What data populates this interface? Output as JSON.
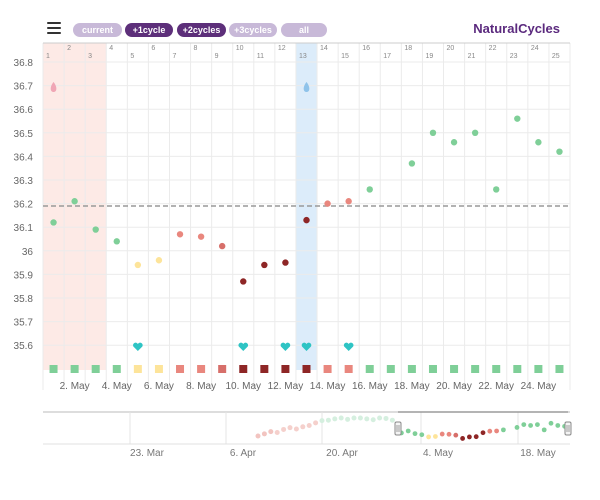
{
  "toolbar": {
    "menu_icon": "hamburger-menu-icon",
    "cycle_buttons": [
      {
        "label": "current",
        "style": "light"
      },
      {
        "label": "+1cycle",
        "style": "dark"
      },
      {
        "label": "+2cycles",
        "style": "dark"
      },
      {
        "label": "+3cycles",
        "style": "light"
      },
      {
        "label": "all",
        "style": "light"
      }
    ],
    "brand": "NaturalCycles"
  },
  "colors": {
    "green": "#7fcf98",
    "yellow": "#fde49a",
    "salmon": "#e9877e",
    "red": "#d76f6a",
    "dark_red": "#8e2626",
    "teal": "#2ec4c4",
    "period_band": "#fdeae6",
    "ovulation_band": "#dcecfa",
    "coverline": "#999999",
    "brand": "#5b2a7e"
  },
  "chart_data": {
    "type": "scatter",
    "cycle_days": [
      1,
      2,
      3,
      4,
      5,
      6,
      7,
      8,
      9,
      10,
      11,
      12,
      13,
      14,
      15,
      16,
      17,
      18,
      19,
      20,
      21,
      22,
      23,
      24,
      25
    ],
    "ylim": [
      35.5,
      36.9
    ],
    "y_ticks": [
      "36.8",
      "36.7",
      "36.6",
      "36.5",
      "36.4",
      "36.3",
      "36.2",
      "36.1",
      "36",
      "35.9",
      "35.8",
      "35.7",
      "35.6"
    ],
    "x_date_labels": [
      "2. May",
      "4. May",
      "6. May",
      "8. May",
      "10. May",
      "12. May",
      "14. May",
      "16. May",
      "18. May",
      "20. May",
      "22. May",
      "24. May"
    ],
    "coverline": 36.19,
    "period_days": [
      1,
      3
    ],
    "ovulation_day": 13,
    "temperatures": [
      {
        "day": 1,
        "temp": 36.12,
        "color": "green"
      },
      {
        "day": 2,
        "temp": 36.21,
        "color": "green"
      },
      {
        "day": 3,
        "temp": 36.09,
        "color": "green"
      },
      {
        "day": 4,
        "temp": 36.04,
        "color": "green"
      },
      {
        "day": 5,
        "temp": 35.94,
        "color": "yellow"
      },
      {
        "day": 6,
        "temp": 35.96,
        "color": "yellow"
      },
      {
        "day": 7,
        "temp": 36.07,
        "color": "salmon"
      },
      {
        "day": 8,
        "temp": 36.06,
        "color": "salmon"
      },
      {
        "day": 9,
        "temp": 36.02,
        "color": "red"
      },
      {
        "day": 10,
        "temp": 35.87,
        "color": "dark_red"
      },
      {
        "day": 11,
        "temp": 35.94,
        "color": "dark_red"
      },
      {
        "day": 12,
        "temp": 35.95,
        "color": "dark_red"
      },
      {
        "day": 13,
        "temp": 36.13,
        "color": "dark_red"
      },
      {
        "day": 14,
        "temp": 36.2,
        "color": "salmon"
      },
      {
        "day": 15,
        "temp": 36.21,
        "color": "salmon"
      },
      {
        "day": 16,
        "temp": 36.26,
        "color": "green"
      },
      {
        "day": 18,
        "temp": 36.37,
        "color": "green"
      },
      {
        "day": 19,
        "temp": 36.5,
        "color": "green"
      },
      {
        "day": 20,
        "temp": 36.46,
        "color": "green"
      },
      {
        "day": 21,
        "temp": 36.5,
        "color": "green"
      },
      {
        "day": 22,
        "temp": 36.26,
        "color": "green"
      },
      {
        "day": 23,
        "temp": 36.56,
        "color": "green"
      },
      {
        "day": 24,
        "temp": 36.46,
        "color": "green"
      },
      {
        "day": 25,
        "temp": 36.42,
        "color": "green"
      }
    ],
    "day_status": [
      "green",
      "green",
      "green",
      "green",
      "yellow",
      "yellow",
      "salmon",
      "salmon",
      "red",
      "dark_red",
      "dark_red",
      "dark_red",
      "dark_red",
      "salmon",
      "salmon",
      "green",
      "green",
      "green",
      "green",
      "green",
      "green",
      "green",
      "green",
      "green",
      "green"
    ],
    "heart_days": [
      5,
      10,
      12,
      13,
      15
    ],
    "drop_days": [
      1,
      13
    ],
    "navigator": {
      "date_labels": [
        "23. Mar",
        "6. Apr",
        "20. Apr",
        "4. May",
        "18. May"
      ]
    }
  }
}
